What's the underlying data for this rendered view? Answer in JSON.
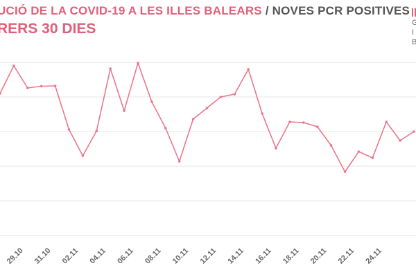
{
  "header": {
    "title_main": "UCIÓ DE LA COVID-19 A LES ILLES BALEARS",
    "title_separator": "/",
    "title_sub": "NOVES PCR POSITIVES",
    "subtitle": "RERS 30 DIES"
  },
  "logo": {
    "letters": [
      "G",
      "I",
      "B"
    ]
  },
  "colors": {
    "accent": "#e0607a",
    "line": "#e8788c",
    "grid": "#e6e6e6",
    "text": "#555555"
  },
  "chart_data": {
    "type": "line",
    "title": "UCIÓ DE LA COVID-19 A LES ILLES BALEARS / NOVES PCR POSITIVES",
    "subtitle": "RERS 30 DIES",
    "xlabel": "",
    "ylabel": "",
    "grid": true,
    "x_tick_labels": [
      "29.10",
      "31.10",
      "02.11",
      "04.11",
      "06.11",
      "08.11",
      "10.11",
      "12.11",
      "14.11",
      "16.11",
      "18.11",
      "20.11",
      "22.11",
      "24.11"
    ],
    "ylim": [
      0,
      5
    ],
    "series": [
      {
        "values": [
          {
            "x": 27,
            "y": 4.1
          },
          {
            "x": 28,
            "y": 4.9
          },
          {
            "x": 29,
            "y": 4.26
          },
          {
            "x": 30,
            "y": 4.31
          },
          {
            "x": 31,
            "y": 4.32
          },
          {
            "x": 32,
            "y": 3.06
          },
          {
            "x": 33,
            "y": 2.3
          },
          {
            "x": 34,
            "y": 3.02
          },
          {
            "x": 35,
            "y": 4.82
          },
          {
            "x": 36,
            "y": 3.6
          },
          {
            "x": 37,
            "y": 4.98
          },
          {
            "x": 38,
            "y": 3.86
          },
          {
            "x": 39,
            "y": 3.1
          },
          {
            "x": 40,
            "y": 2.14
          },
          {
            "x": 41,
            "y": 3.36
          },
          {
            "x": 42,
            "y": 3.68
          },
          {
            "x": 43,
            "y": 4.0
          },
          {
            "x": 44,
            "y": 4.08
          },
          {
            "x": 45,
            "y": 4.8
          },
          {
            "x": 46,
            "y": 3.52
          },
          {
            "x": 47,
            "y": 2.52
          },
          {
            "x": 48,
            "y": 3.28
          },
          {
            "x": 49,
            "y": 3.26
          },
          {
            "x": 50,
            "y": 3.14
          },
          {
            "x": 51,
            "y": 2.6
          },
          {
            "x": 52,
            "y": 1.84
          },
          {
            "x": 53,
            "y": 2.42
          },
          {
            "x": 54,
            "y": 2.24
          },
          {
            "x": 55,
            "y": 3.28
          },
          {
            "x": 56,
            "y": 2.74
          },
          {
            "x": 57,
            "y": 3.0
          }
        ]
      }
    ]
  }
}
